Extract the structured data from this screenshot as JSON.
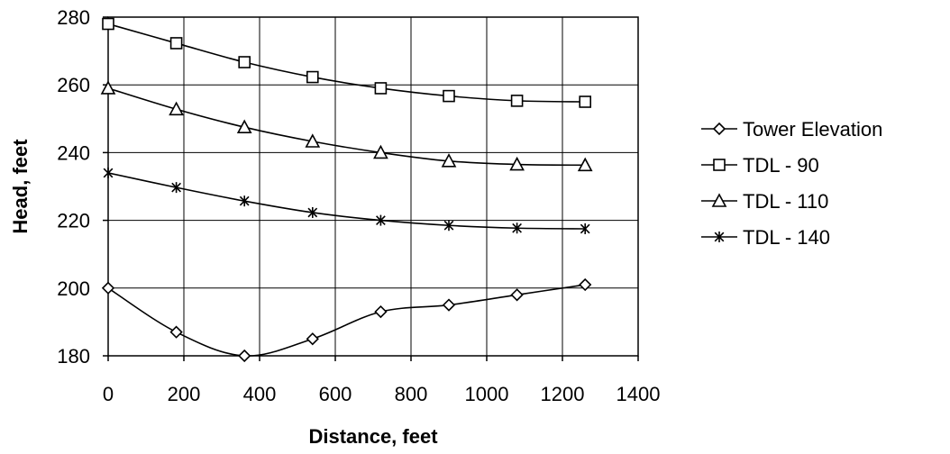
{
  "chart_data": {
    "type": "line",
    "title": "",
    "xlabel": "Distance, feet",
    "ylabel": "Head, feet",
    "xlim": [
      0,
      1400
    ],
    "ylim": [
      180,
      280
    ],
    "xticks": [
      0,
      200,
      400,
      600,
      800,
      1000,
      1200,
      1400
    ],
    "yticks": [
      180,
      200,
      220,
      240,
      260,
      280
    ],
    "grid": true,
    "legend_position": "right",
    "x": [
      0,
      180,
      360,
      540,
      720,
      900,
      1080,
      1260
    ],
    "series": [
      {
        "name": "Tower Elevation",
        "marker": "diamond",
        "values": [
          200,
          187,
          180,
          185,
          193,
          195,
          198,
          201
        ]
      },
      {
        "name": "TDL - 90",
        "marker": "square",
        "values": [
          278,
          272.3,
          266.7,
          262.3,
          259,
          256.7,
          255.3,
          255
        ]
      },
      {
        "name": "TDL - 110",
        "marker": "triangle",
        "values": [
          259,
          252.8,
          247.5,
          243.3,
          240,
          237.5,
          236.5,
          236.3
        ]
      },
      {
        "name": "TDL - 140",
        "marker": "asterisk",
        "values": [
          234,
          229.7,
          225.7,
          222.3,
          220,
          218.5,
          217.7,
          217.5
        ]
      }
    ]
  }
}
